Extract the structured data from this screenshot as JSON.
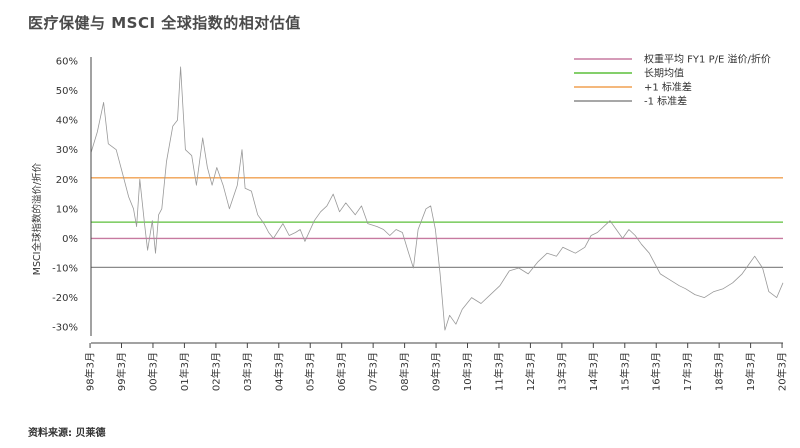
{
  "title": "医疗保健与 MSCI 全球指数的相对估值",
  "source": "资料来源: 贝莱德",
  "chart_data": {
    "type": "line",
    "ylabel": "MSCI全球指数的溢价/折价",
    "ylim": [
      -33,
      60
    ],
    "yticks": [
      60,
      50,
      40,
      30,
      20,
      10,
      0,
      -10,
      -20,
      -30
    ],
    "ytick_labels": [
      "60%",
      "50%",
      "40%",
      "30%",
      "20%",
      "10%",
      "0%",
      "-10%",
      "-20%",
      "-30%"
    ],
    "xlim": [
      1998.2,
      2020.2
    ],
    "xticks": [
      1998.17,
      1999.17,
      2000.17,
      2001.17,
      2002.17,
      2003.17,
      2004.17,
      2005.17,
      2006.17,
      2007.17,
      2008.17,
      2009.17,
      2010.17,
      2011.17,
      2012.17,
      2013.17,
      2014.17,
      2015.17,
      2016.17,
      2017.17,
      2018.17,
      2019.17,
      2020.17
    ],
    "xtick_labels": [
      "98年3月",
      "99年3月",
      "00年3月",
      "01年3月",
      "02年3月",
      "03年3月",
      "04年3月",
      "05年3月",
      "06年3月",
      "07年3月",
      "08年3月",
      "09年3月",
      "10年3月",
      "11年3月",
      "12年3月",
      "13年3月",
      "14年3月",
      "15年3月",
      "16年3月",
      "17年3月",
      "18年3月",
      "19年3月",
      "20年3月"
    ],
    "legend_position": "top-right",
    "colors": {
      "premium": "#999999",
      "mean": "#5cbf3a",
      "plus1": "#f0a050",
      "minus1": "#8a8a8a",
      "zero": "#c77aa0",
      "axis": "#444444"
    },
    "hlines": [
      {
        "key": "mean",
        "y": 5.5
      },
      {
        "key": "plus1",
        "y": 20.5
      },
      {
        "key": "minus1",
        "y": -9.8
      },
      {
        "key": "zero",
        "y": 0
      }
    ],
    "legend": [
      {
        "name": "权重平均 FY1 P/E 溢价/折价",
        "key": "zero"
      },
      {
        "name": "长期均值",
        "key": "mean"
      },
      {
        "name": "+1 标准差",
        "key": "plus1"
      },
      {
        "name": "-1 标准差",
        "key": "minus1"
      }
    ],
    "series": [
      {
        "key": "premium",
        "x": [
          1998.2,
          1998.4,
          1998.6,
          1998.75,
          1999.0,
          1999.2,
          1999.4,
          1999.55,
          1999.65,
          1999.75,
          1999.9,
          2000.0,
          2000.15,
          2000.25,
          2000.35,
          2000.45,
          2000.6,
          2000.8,
          2000.95,
          2001.05,
          2001.2,
          2001.4,
          2001.55,
          2001.75,
          2001.9,
          2002.05,
          2002.2,
          2002.4,
          2002.6,
          2002.85,
          2003.0,
          2003.1,
          2003.3,
          2003.5,
          2003.7,
          2003.85,
          2004.0,
          2004.3,
          2004.5,
          2004.7,
          2004.85,
          2005.0,
          2005.3,
          2005.5,
          2005.7,
          2005.9,
          2006.1,
          2006.3,
          2006.6,
          2006.8,
          2007.0,
          2007.3,
          2007.5,
          2007.7,
          2007.9,
          2008.1,
          2008.3,
          2008.45,
          2008.6,
          2008.85,
          2009.0,
          2009.15,
          2009.3,
          2009.45,
          2009.6,
          2009.8,
          2010.0,
          2010.3,
          2010.6,
          2010.9,
          2011.2,
          2011.5,
          2011.8,
          2012.1,
          2012.4,
          2012.7,
          2013.0,
          2013.2,
          2013.4,
          2013.6,
          2013.9,
          2014.1,
          2014.3,
          2014.5,
          2014.7,
          2014.9,
          2015.1,
          2015.3,
          2015.5,
          2015.7,
          2015.95,
          2016.1,
          2016.3,
          2016.6,
          2016.9,
          2017.1,
          2017.4,
          2017.7,
          2018.0,
          2018.3,
          2018.6,
          2018.9,
          2019.1,
          2019.3,
          2019.55,
          2019.75,
          2020.0,
          2020.2
        ],
        "values": [
          29,
          36,
          46,
          32,
          30,
          22,
          14,
          10,
          4,
          20,
          5,
          -4,
          6,
          -5,
          8,
          10,
          26,
          38,
          40,
          58,
          30,
          28,
          18,
          34,
          24,
          18,
          24,
          18,
          10,
          18,
          30,
          17,
          16,
          8,
          5,
          2,
          0,
          5,
          1,
          2,
          3,
          -1,
          6,
          9,
          11,
          15,
          9,
          12,
          8,
          11,
          5,
          4,
          3,
          1,
          3,
          2,
          -5,
          -10,
          3,
          10,
          11,
          3,
          -12,
          -31,
          -26,
          -29,
          -24,
          -20,
          -22,
          -19,
          -16,
          -11,
          -10,
          -12,
          -8,
          -5,
          -6,
          -3,
          -4,
          -5,
          -3,
          1,
          2,
          4,
          6,
          3,
          0,
          3,
          1,
          -2,
          -5,
          -8,
          -12,
          -14,
          -16,
          -17,
          -19,
          -20,
          -18,
          -17,
          -15,
          -12,
          -9,
          -6,
          -10,
          -18,
          -20,
          -15
        ]
      }
    ]
  }
}
